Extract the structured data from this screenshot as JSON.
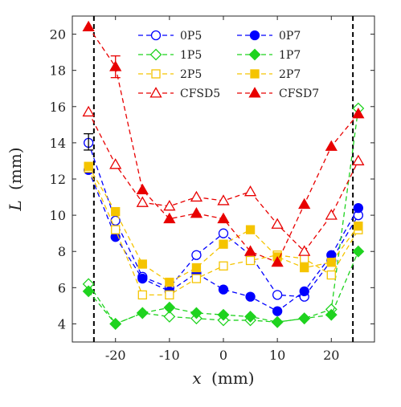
{
  "chart_data": {
    "type": "line",
    "title": "",
    "xlabel": "x",
    "xlabel_unit": "(mm)",
    "ylabel": "L",
    "ylabel_unit": "(mm)",
    "xlim": [
      -28,
      28
    ],
    "ylim": [
      3,
      21
    ],
    "xticks": [
      -20,
      -10,
      0,
      10,
      20
    ],
    "yticks": [
      4,
      6,
      8,
      10,
      12,
      14,
      16,
      18,
      20
    ],
    "grid": false,
    "legend": "top",
    "reference_lines_x": [
      -24,
      24
    ],
    "x": [
      -25,
      -20,
      -15,
      -10,
      -5,
      0,
      5,
      10,
      15,
      20,
      25
    ],
    "series": [
      {
        "name": "0P5",
        "color": "#0000ff",
        "marker": "circle",
        "filled": false,
        "values": [
          14.0,
          9.7,
          6.6,
          6.0,
          7.8,
          9.0,
          7.8,
          5.6,
          5.5,
          7.5,
          10.0
        ]
      },
      {
        "name": "0P7",
        "color": "#0000ff",
        "marker": "circle",
        "filled": true,
        "values": [
          12.5,
          8.8,
          6.5,
          5.8,
          6.8,
          5.9,
          5.5,
          4.7,
          5.8,
          7.8,
          10.4
        ]
      },
      {
        "name": "1P5",
        "color": "#1fd31f",
        "marker": "diamond",
        "filled": false,
        "values": [
          6.2,
          4.0,
          4.6,
          4.4,
          4.3,
          4.2,
          4.2,
          4.1,
          4.3,
          4.8,
          15.9
        ]
      },
      {
        "name": "1P7",
        "color": "#1fd31f",
        "marker": "diamond",
        "filled": true,
        "values": [
          5.8,
          4.0,
          4.6,
          4.9,
          4.6,
          4.5,
          4.4,
          4.1,
          4.3,
          4.5,
          8.0
        ]
      },
      {
        "name": "2P5",
        "color": "#f5c400",
        "marker": "square",
        "filled": false,
        "values": [
          12.6,
          9.2,
          5.6,
          5.6,
          6.5,
          7.2,
          7.5,
          7.8,
          7.6,
          6.7,
          9.2
        ]
      },
      {
        "name": "2P7",
        "color": "#f5c400",
        "marker": "square",
        "filled": true,
        "values": [
          12.7,
          10.2,
          7.3,
          6.3,
          7.1,
          8.4,
          9.2,
          7.7,
          7.1,
          7.4,
          9.4
        ]
      },
      {
        "name": "CFSD5",
        "color": "#e80000",
        "marker": "triangle",
        "filled": false,
        "values": [
          15.7,
          12.8,
          10.7,
          10.5,
          11.0,
          10.8,
          11.3,
          9.5,
          8.0,
          10.0,
          13.0
        ]
      },
      {
        "name": "CFSD7",
        "color": "#e80000",
        "marker": "triangle",
        "filled": true,
        "values": [
          20.4,
          18.2,
          11.4,
          9.8,
          10.1,
          9.8,
          8.0,
          7.4,
          10.6,
          13.8,
          15.6
        ]
      }
    ],
    "error_bars": [
      {
        "series": "0P5",
        "x": -25,
        "low": 13.6,
        "high": 14.5
      },
      {
        "series": "CFSD7",
        "x": -20,
        "low": 17.6,
        "high": 18.8
      }
    ]
  }
}
